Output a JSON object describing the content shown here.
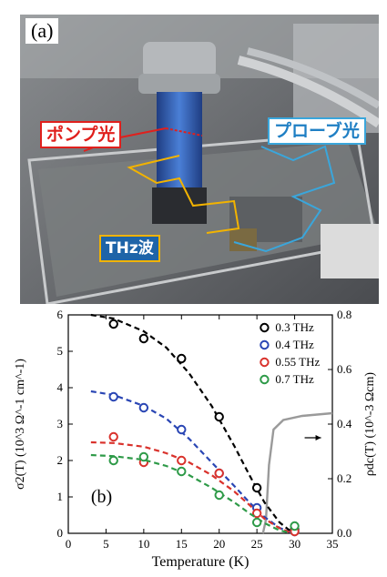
{
  "photo_panel": {
    "label": "(a)",
    "pump_label": "ポンプ光",
    "probe_label": "プローブ光",
    "thz_label": "THz波",
    "colors": {
      "pump": "#e0201d",
      "probe": "#3aa6db",
      "thz_path": "#f2b300"
    }
  },
  "chart_data": {
    "type": "scatter",
    "panel_label": "(b)",
    "xlabel": "Temperature (K)",
    "ylabel_left": "σ2(T) (10^3 Ω^-1 cm^-1)",
    "ylabel_right": "ρdc(T) (10^-3 Ωcm)",
    "xlim": [
      0,
      35
    ],
    "ylim_left": [
      0,
      6
    ],
    "ylim_right": [
      0,
      0.8
    ],
    "xticks": [
      "0",
      "5",
      "10",
      "15",
      "20",
      "25",
      "30",
      "35"
    ],
    "yticks_left": [
      "0",
      "1",
      "2",
      "3",
      "4",
      "5",
      "6"
    ],
    "yticks_right": [
      "0.0",
      "0.2",
      "0.4",
      "0.6",
      "0.8"
    ],
    "legend_position": "top-right",
    "series": [
      {
        "name": "0.3 THz",
        "color": "#000000",
        "points": [
          [
            6,
            5.75
          ],
          [
            10,
            5.35
          ],
          [
            15,
            4.8
          ],
          [
            20,
            3.2
          ],
          [
            25,
            1.25
          ],
          [
            30,
            0.1
          ]
        ],
        "fit": [
          [
            3,
            6.0
          ],
          [
            6,
            5.9
          ],
          [
            10,
            5.55
          ],
          [
            13,
            5.1
          ],
          [
            16,
            4.4
          ],
          [
            19,
            3.5
          ],
          [
            22,
            2.4
          ],
          [
            24,
            1.6
          ],
          [
            26,
            0.85
          ],
          [
            28,
            0.3
          ],
          [
            29.5,
            0.05
          ]
        ]
      },
      {
        "name": "0.4 THz",
        "color": "#2a46b4",
        "points": [
          [
            6,
            3.75
          ],
          [
            10,
            3.45
          ],
          [
            15,
            2.85
          ],
          [
            20,
            1.65
          ],
          [
            25,
            0.7
          ],
          [
            30,
            0.05
          ]
        ],
        "fit": [
          [
            3,
            3.9
          ],
          [
            6,
            3.8
          ],
          [
            10,
            3.5
          ],
          [
            13,
            3.15
          ],
          [
            16,
            2.6
          ],
          [
            19,
            1.95
          ],
          [
            22,
            1.3
          ],
          [
            24,
            0.85
          ],
          [
            26,
            0.45
          ],
          [
            28,
            0.15
          ],
          [
            29.5,
            0.02
          ]
        ]
      },
      {
        "name": "0.55 THz",
        "color": "#d9322c",
        "points": [
          [
            6,
            2.65
          ],
          [
            10,
            1.95
          ],
          [
            15,
            2.0
          ],
          [
            20,
            1.65
          ],
          [
            25,
            0.55
          ],
          [
            30,
            0.05
          ]
        ],
        "fit": [
          [
            3,
            2.5
          ],
          [
            6,
            2.48
          ],
          [
            10,
            2.38
          ],
          [
            13,
            2.2
          ],
          [
            16,
            1.95
          ],
          [
            19,
            1.6
          ],
          [
            22,
            1.15
          ],
          [
            24,
            0.78
          ],
          [
            26,
            0.4
          ],
          [
            28,
            0.14
          ],
          [
            29.5,
            0.02
          ]
        ]
      },
      {
        "name": "0.7 THz",
        "color": "#2e9a48",
        "points": [
          [
            6,
            2.0
          ],
          [
            10,
            2.1
          ],
          [
            15,
            1.7
          ],
          [
            20,
            1.05
          ],
          [
            25,
            0.3
          ],
          [
            30,
            0.2
          ]
        ],
        "fit": [
          [
            3,
            2.15
          ],
          [
            6,
            2.12
          ],
          [
            10,
            2.02
          ],
          [
            13,
            1.85
          ],
          [
            16,
            1.6
          ],
          [
            19,
            1.25
          ],
          [
            22,
            0.85
          ],
          [
            24,
            0.55
          ],
          [
            26,
            0.28
          ],
          [
            28,
            0.08
          ],
          [
            29.5,
            0.01
          ]
        ]
      }
    ],
    "resistivity": {
      "color": "#9a9a9a",
      "points": [
        [
          25.8,
          0.0
        ],
        [
          26.2,
          0.05
        ],
        [
          26.6,
          0.25
        ],
        [
          27.2,
          0.38
        ],
        [
          28.5,
          0.415
        ],
        [
          31,
          0.43
        ],
        [
          35,
          0.44
        ]
      ]
    }
  }
}
